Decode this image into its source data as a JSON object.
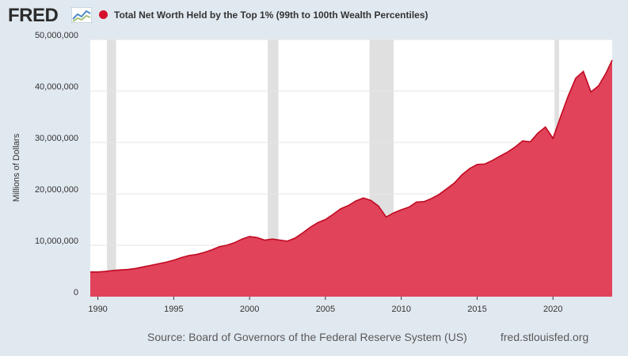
{
  "header": {
    "logo_text": "FRED",
    "logo_graph_icon": "line-graph-icon",
    "legend_color": "#d6102b"
  },
  "chart_data": {
    "type": "area",
    "title": "Total Net Worth Held by the Top 1% (99th to 100th Wealth Percentiles)",
    "xlabel": "",
    "ylabel": "Millions of Dollars",
    "xlim": [
      1989.5,
      2023.9
    ],
    "ylim": [
      0,
      50000000
    ],
    "x_ticks": [
      1990,
      1995,
      2000,
      2005,
      2010,
      2015,
      2020
    ],
    "x_tick_labels": [
      "1990",
      "1995",
      "2000",
      "2005",
      "2010",
      "2015",
      "2020"
    ],
    "y_ticks": [
      0,
      10000000,
      20000000,
      30000000,
      40000000,
      50000000
    ],
    "y_tick_labels": [
      "0",
      "10,000,000",
      "20,000,000",
      "30,000,000",
      "40,000,000",
      "50,000,000"
    ],
    "grid": "horizontal",
    "fill_color": "#e0435a",
    "line_color": "#c10a22",
    "recession_color": "#e0e0e0",
    "recessions": [
      [
        1990.6,
        1991.2
      ],
      [
        2001.2,
        2001.9
      ],
      [
        2007.9,
        2009.5
      ],
      [
        2020.1,
        2020.4
      ]
    ],
    "series": [
      {
        "x": [
          1989.5,
          1990.0,
          1990.5,
          1991.0,
          1991.5,
          1992.0,
          1992.5,
          1993.0,
          1993.5,
          1994.0,
          1994.5,
          1995.0,
          1995.5,
          1996.0,
          1996.5,
          1997.0,
          1997.5,
          1998.0,
          1998.5,
          1999.0,
          1999.5,
          2000.0,
          2000.5,
          2001.0,
          2001.5,
          2002.0,
          2002.5,
          2003.0,
          2003.5,
          2004.0,
          2004.5,
          2005.0,
          2005.5,
          2006.0,
          2006.5,
          2007.0,
          2007.5,
          2008.0,
          2008.5,
          2009.0,
          2009.5,
          2010.0,
          2010.5,
          2011.0,
          2011.5,
          2012.0,
          2012.5,
          2013.0,
          2013.5,
          2014.0,
          2014.5,
          2015.0,
          2015.5,
          2016.0,
          2016.5,
          2017.0,
          2017.5,
          2018.0,
          2018.5,
          2019.0,
          2019.5,
          2020.0,
          2020.5,
          2021.0,
          2021.5,
          2022.0,
          2022.5,
          2023.0,
          2023.5,
          2023.9
        ],
        "values": [
          4800000,
          4800000,
          4900000,
          5100000,
          5200000,
          5300000,
          5500000,
          5800000,
          6100000,
          6400000,
          6700000,
          7100000,
          7600000,
          8000000,
          8200000,
          8600000,
          9100000,
          9700000,
          10000000,
          10500000,
          11200000,
          11700000,
          11500000,
          11000000,
          11200000,
          11000000,
          10800000,
          11400000,
          12400000,
          13500000,
          14400000,
          15000000,
          16000000,
          17100000,
          17700000,
          18600000,
          19200000,
          18700000,
          17600000,
          15500000,
          16300000,
          16900000,
          17400000,
          18400000,
          18500000,
          19100000,
          19900000,
          21000000,
          22100000,
          23700000,
          24900000,
          25700000,
          25800000,
          26500000,
          27300000,
          28100000,
          29100000,
          30300000,
          30100000,
          31800000,
          33000000,
          30800000,
          35000000,
          39000000,
          42500000,
          43800000,
          39800000,
          41000000,
          43500000,
          46000000
        ]
      }
    ]
  },
  "footer": {
    "source": "Source: Board of Governors of the Federal Reserve System (US)",
    "site": "fred.stlouisfed.org"
  }
}
